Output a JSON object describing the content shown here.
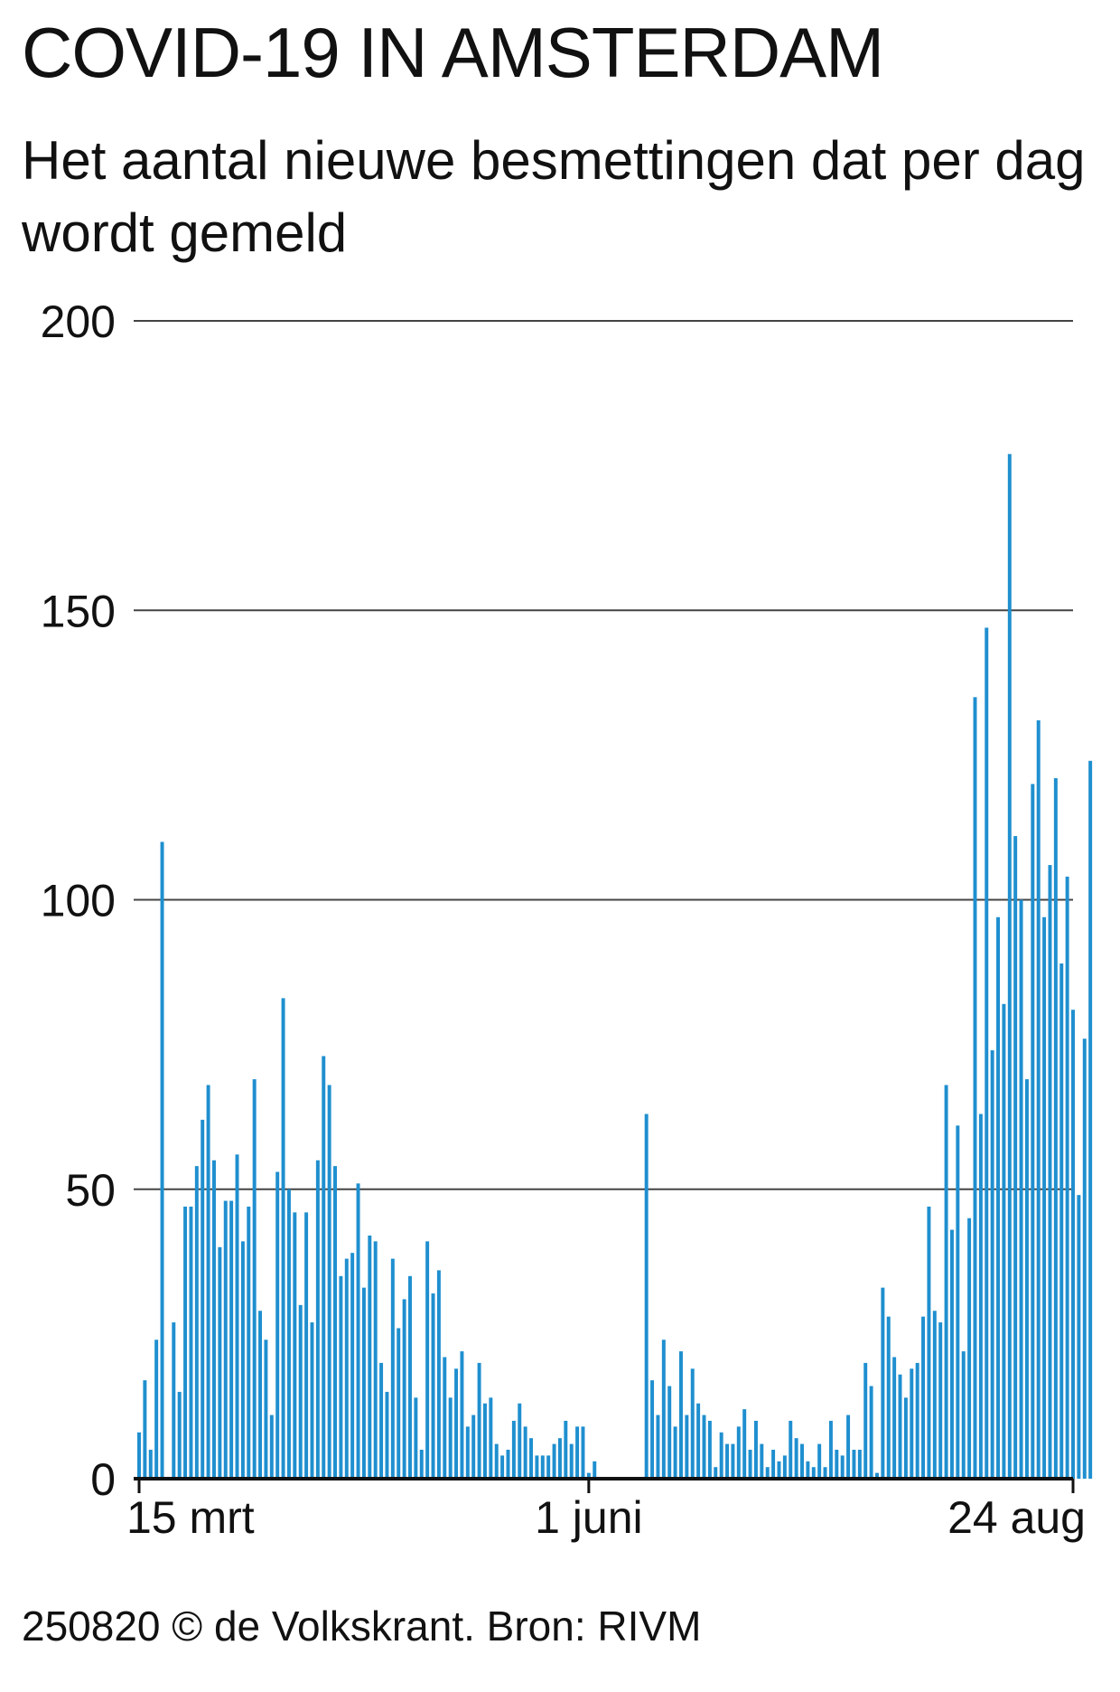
{
  "title": "COVID-19 IN AMSTERDAM",
  "subtitle": "Het aantal nieuwe besmettingen dat per dag wordt gemeld",
  "footer": "250820 © de Volkskrant. Bron: RIVM",
  "colors": {
    "bar": "#1f8fcf",
    "grid": "#444444",
    "axis": "#111111"
  },
  "chart_data": {
    "type": "bar",
    "title": "COVID-19 IN AMSTERDAM",
    "subtitle": "Het aantal nieuwe besmettingen dat per dag wordt gemeld",
    "xlabel": "",
    "ylabel": "",
    "ylim": [
      0,
      200
    ],
    "yticks": [
      0,
      50,
      100,
      150,
      200
    ],
    "grid": true,
    "x_range": [
      "2020-03-15",
      "2020-08-24"
    ],
    "xtick_labels": [
      {
        "date": "2020-03-15",
        "label": "15 mrt"
      },
      {
        "date": "2020-06-01",
        "label": "1 juni"
      },
      {
        "date": "2020-08-24",
        "label": "24 aug"
      }
    ],
    "series": [
      {
        "values": [
          8,
          17,
          5,
          24,
          110,
          0,
          27,
          15,
          47,
          47,
          54,
          62,
          68,
          55,
          40,
          48,
          48,
          56,
          41,
          47,
          69,
          29,
          24,
          11,
          53,
          83,
          50,
          46,
          30,
          46,
          27,
          55,
          73,
          68,
          54,
          35,
          38,
          39,
          51,
          33,
          42,
          41,
          20,
          15,
          38,
          26,
          31,
          35,
          14,
          5,
          41,
          32,
          36,
          21,
          14,
          19,
          22,
          9,
          11,
          20,
          13,
          14,
          6,
          4,
          5,
          10,
          13,
          9,
          7,
          4,
          4,
          4,
          6,
          7,
          10,
          6,
          9,
          9,
          1,
          3,
          0,
          0,
          0,
          0,
          0,
          0,
          0,
          0,
          63,
          17,
          11,
          24,
          16,
          9,
          22,
          11,
          19,
          13,
          11,
          10,
          2,
          8,
          6,
          6,
          9,
          12,
          5,
          10,
          6,
          2,
          5,
          3,
          4,
          10,
          7,
          6,
          3,
          2,
          6,
          2,
          10,
          5,
          4,
          11,
          5,
          5,
          20,
          16,
          1,
          33,
          28,
          21,
          18,
          14,
          19,
          20,
          28,
          47,
          29,
          27,
          68,
          43,
          61,
          22,
          45,
          135,
          63,
          147,
          74,
          97,
          82,
          177,
          111,
          100,
          69,
          120,
          131,
          97,
          106,
          121,
          89,
          104,
          81,
          49,
          76,
          124
        ]
      }
    ]
  }
}
